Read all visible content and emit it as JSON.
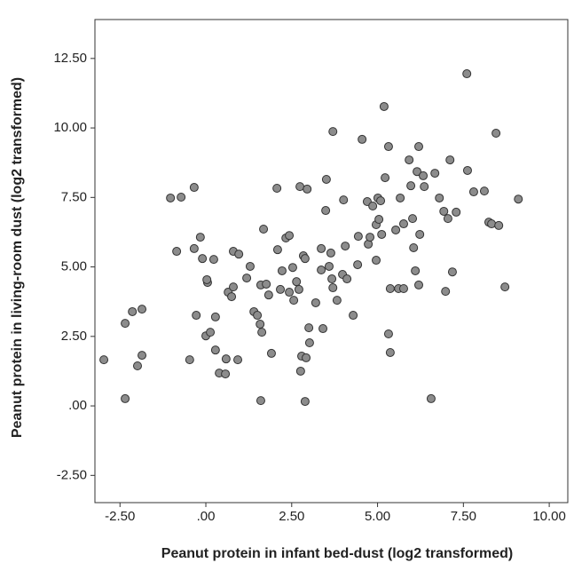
{
  "chart_data": {
    "type": "scatter",
    "x_label": "Peanut protein in infant bed-dust (log2 transformed)",
    "y_label": "Peanut protein in living-room dust (log2 transformed)",
    "color": "#8c8c8c",
    "xlim": [
      -3.23,
      10.54
    ],
    "ylim": [
      -3.48,
      13.9
    ],
    "xticks": [
      {
        "value": -2.5,
        "label": "-2.50"
      },
      {
        "value": 0,
        "label": ".00"
      },
      {
        "value": 2.5,
        "label": "2.50"
      },
      {
        "value": 5,
        "label": "5.00"
      },
      {
        "value": 7.5,
        "label": "7.50"
      },
      {
        "value": 10,
        "label": "10.00"
      }
    ],
    "yticks": [
      {
        "value": -2.5,
        "label": "-2.50"
      },
      {
        "value": 0,
        "label": ".00"
      },
      {
        "value": 2.5,
        "label": "2.50"
      },
      {
        "value": 5,
        "label": "5.00"
      },
      {
        "value": 7.5,
        "label": "7.50"
      },
      {
        "value": 10,
        "label": "10.00"
      },
      {
        "value": 12.5,
        "label": "12.50"
      }
    ],
    "x": [
      -2.97,
      -2.35,
      -2.35,
      -2.14,
      -1.99,
      -1.86,
      -1.86,
      -1.03,
      -0.72,
      -0.34,
      -0.85,
      -0.34,
      -0.16,
      -0.1,
      0.05,
      0.03,
      -0.28,
      -0.47,
      0.0,
      0.13,
      0.23,
      0.28,
      0.28,
      0.39,
      0.57,
      0.59,
      0.93,
      0.65,
      0.8,
      0.75,
      0.8,
      0.96,
      1.19,
      1.29,
      1.4,
      1.5,
      1.58,
      1.6,
      1.63,
      1.6,
      1.68,
      1.76,
      1.83,
      1.91,
      2.07,
      2.09,
      2.17,
      2.22,
      2.33,
      2.43,
      2.43,
      2.56,
      2.53,
      2.64,
      2.74,
      2.84,
      2.71,
      2.79,
      2.76,
      2.89,
      2.92,
      2.95,
      2.89,
      3.0,
      3.02,
      3.2,
      3.36,
      3.36,
      3.41,
      3.49,
      3.51,
      3.59,
      3.67,
      3.7,
      3.64,
      3.7,
      3.82,
      3.98,
      4.01,
      4.06,
      4.11,
      4.29,
      4.42,
      4.44,
      4.55,
      4.7,
      4.73,
      4.78,
      4.86,
      4.96,
      4.96,
      5.01,
      5.04,
      5.09,
      5.12,
      5.19,
      5.22,
      5.32,
      5.32,
      5.37,
      5.37,
      5.53,
      5.61,
      5.66,
      5.76,
      5.76,
      5.92,
      5.97,
      6.02,
      6.05,
      6.1,
      6.2,
      6.15,
      6.2,
      6.23,
      6.33,
      6.36,
      6.56,
      6.67,
      6.8,
      6.93,
      6.98,
      7.05,
      7.11,
      7.18,
      7.29,
      7.6,
      7.62,
      7.8,
      8.11,
      8.24,
      8.32,
      8.45,
      8.53,
      8.71,
      9.1
    ],
    "y": [
      1.66,
      0.26,
      2.97,
      3.39,
      1.44,
      3.48,
      1.82,
      7.48,
      7.51,
      7.86,
      5.56,
      5.66,
      6.07,
      5.3,
      4.44,
      4.54,
      3.26,
      1.66,
      2.52,
      2.65,
      5.27,
      3.2,
      2.01,
      1.18,
      1.15,
      1.69,
      1.66,
      4.09,
      4.28,
      3.93,
      5.56,
      5.46,
      4.6,
      5.02,
      3.39,
      3.26,
      2.94,
      0.19,
      2.65,
      4.35,
      6.36,
      4.38,
      3.99,
      1.89,
      7.83,
      5.62,
      4.19,
      4.86,
      6.04,
      6.13,
      4.09,
      3.8,
      4.98,
      4.47,
      7.89,
      5.4,
      4.19,
      1.79,
      1.25,
      0.16,
      1.73,
      7.8,
      5.3,
      2.81,
      2.27,
      3.71,
      4.89,
      5.66,
      2.78,
      7.03,
      8.15,
      5.02,
      4.57,
      4.25,
      5.5,
      9.87,
      3.8,
      4.73,
      7.41,
      5.75,
      4.57,
      3.26,
      5.08,
      6.1,
      9.59,
      7.35,
      5.82,
      6.07,
      7.19,
      5.24,
      6.52,
      7.48,
      6.71,
      7.38,
      6.17,
      10.77,
      8.21,
      2.59,
      9.33,
      1.92,
      4.22,
      6.33,
      4.22,
      7.48,
      6.55,
      4.22,
      8.85,
      7.92,
      6.74,
      5.69,
      4.86,
      4.35,
      8.43,
      9.33,
      6.17,
      8.28,
      7.89,
      0.26,
      8.37,
      7.48,
      7.0,
      4.12,
      6.74,
      8.85,
      4.82,
      6.97,
      11.95,
      8.47,
      7.7,
      7.73,
      6.61,
      6.55,
      9.81,
      6.49,
      4.28,
      7.44
    ]
  }
}
